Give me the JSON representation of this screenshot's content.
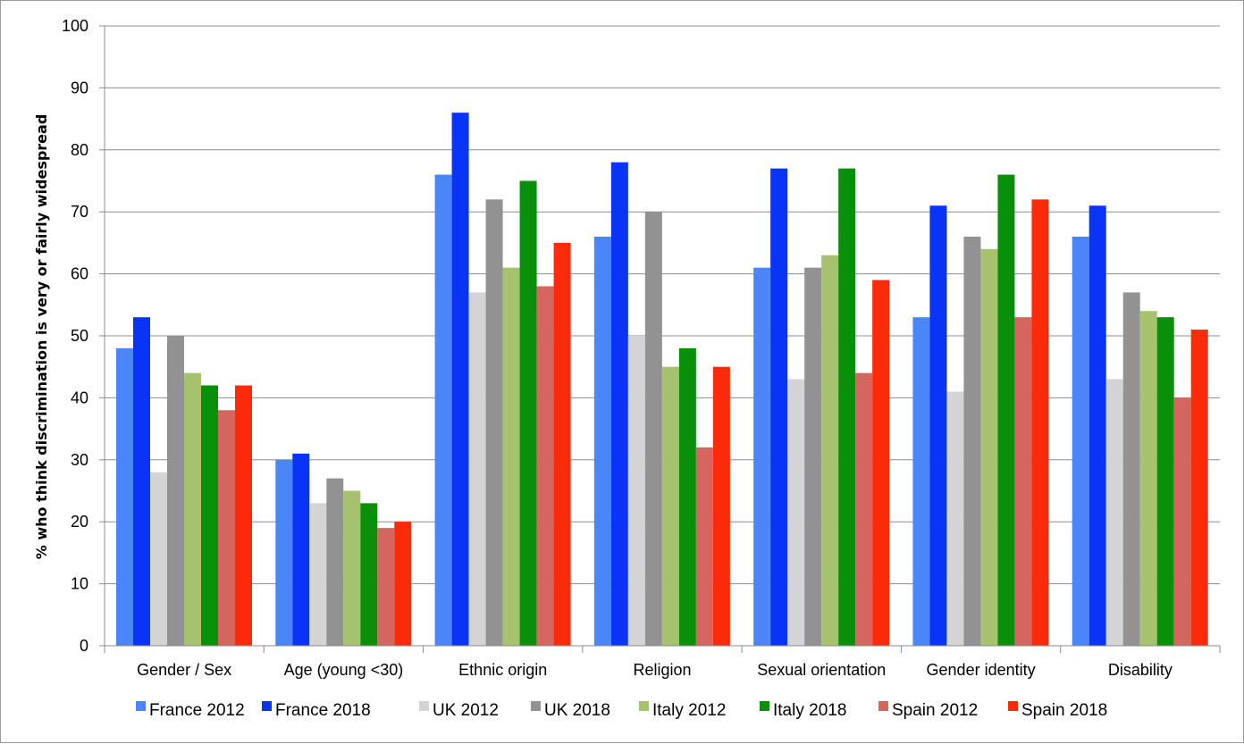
{
  "chart_data": {
    "type": "bar",
    "title": "",
    "xlabel": "",
    "ylabel": "% who think discrimination is very or fairly widespread",
    "ylim": [
      0,
      100
    ],
    "yticks": [
      0,
      10,
      20,
      30,
      40,
      50,
      60,
      70,
      80,
      90,
      100
    ],
    "grid": true,
    "legend_position": "bottom",
    "categories": [
      "Gender / Sex",
      "Age (young <30)",
      "Ethnic origin",
      "Religion",
      "Sexual orientation",
      "Gender identity",
      "Disability"
    ],
    "series": [
      {
        "name": "France 2012",
        "color": "#4a86f7",
        "values": [
          48,
          30,
          76,
          66,
          61,
          53,
          66
        ]
      },
      {
        "name": "France 2018",
        "color": "#0a34f5",
        "values": [
          53,
          31,
          86,
          78,
          77,
          71,
          71
        ]
      },
      {
        "name": "UK 2012",
        "color": "#d4d4d6",
        "values": [
          28,
          23,
          57,
          50,
          43,
          41,
          43
        ]
      },
      {
        "name": "UK 2018",
        "color": "#929292",
        "values": [
          50,
          27,
          72,
          70,
          61,
          66,
          57
        ]
      },
      {
        "name": "Italy 2012",
        "color": "#a7c26e",
        "values": [
          44,
          25,
          61,
          45,
          63,
          64,
          54
        ]
      },
      {
        "name": "Italy 2018",
        "color": "#0a8f0a",
        "values": [
          42,
          23,
          75,
          48,
          77,
          76,
          53
        ]
      },
      {
        "name": "Spain 2012",
        "color": "#d4665f",
        "values": [
          38,
          19,
          58,
          32,
          44,
          53,
          40
        ]
      },
      {
        "name": "Spain 2018",
        "color": "#fa2a0a",
        "values": [
          42,
          20,
          65,
          45,
          59,
          72,
          51
        ]
      }
    ]
  }
}
